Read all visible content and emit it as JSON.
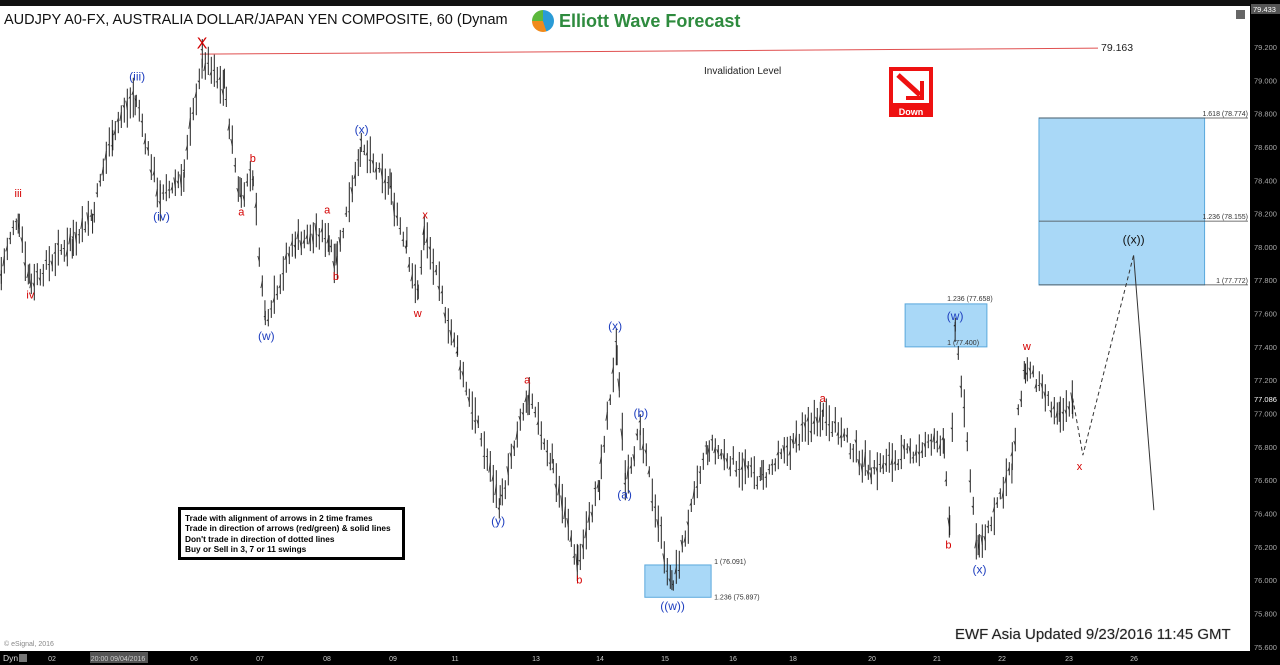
{
  "header": {
    "title": "AUDJPY A0-FX, AUSTRALIA DOLLAR/JAPAN YEN COMPOSITE, 60 (Dynam",
    "logo_text": "Elliott Wave Forecast"
  },
  "notes": [
    "Trade with alignment of arrows in 2 time frames",
    "Trade in direction of arrows (red/green) & solid lines",
    "Don't trade in direction of dotted lines",
    "Buy or Sell in 3, 7 or 11 swings"
  ],
  "footer": {
    "updated": "EWF Asia Updated 9/23/2016 11:45 GMT",
    "copyright": "© eSignal, 2016",
    "dyn_label": "Dyn"
  },
  "signal": {
    "label": "Down",
    "direction": "down",
    "color": "#e11111"
  },
  "invalidation": {
    "label": "Invalidation Level",
    "value_label": "79.163",
    "value": 79.163
  },
  "chart_data": {
    "type": "ohlc-bar",
    "symbol": "AUDJPY",
    "interval": "60",
    "x_ticks": [
      "02",
      "20:00 09/04/2016",
      "06",
      "07",
      "08",
      "09",
      "11",
      "13",
      "14",
      "15",
      "16",
      "18",
      "20",
      "21",
      "22",
      "23",
      "26"
    ],
    "y_ticks": [
      "79.200",
      "79.000",
      "78.800",
      "78.600",
      "78.400",
      "78.200",
      "78.000",
      "77.800",
      "77.600",
      "77.400",
      "77.200",
      "77.000",
      "76.800",
      "76.600",
      "76.400",
      "76.200",
      "76.000",
      "75.800",
      "75.600"
    ],
    "ylim": [
      75.6,
      79.433
    ],
    "last_price": "77.086",
    "top_price": "79.433",
    "swing_path": [
      [
        -0.75,
        77.86
      ],
      [
        -0.5,
        78.2
      ],
      [
        -0.33,
        77.78
      ],
      [
        0.3,
        78.05
      ],
      [
        0.6,
        78.2
      ],
      [
        0.9,
        78.7
      ],
      [
        1.23,
        78.91
      ],
      [
        1.6,
        78.28
      ],
      [
        1.95,
        78.45
      ],
      [
        2.22,
        79.13
      ],
      [
        2.55,
        78.95
      ],
      [
        2.78,
        78.3
      ],
      [
        2.97,
        78.46
      ],
      [
        3.15,
        77.56
      ],
      [
        3.6,
        78.05
      ],
      [
        4.1,
        78.07
      ],
      [
        4.2,
        77.9
      ],
      [
        4.56,
        78.6
      ],
      [
        5.0,
        78.35
      ],
      [
        5.25,
        78.0
      ],
      [
        5.41,
        77.68
      ],
      [
        5.5,
        78.1
      ],
      [
        6.0,
        77.35
      ],
      [
        6.63,
        76.45
      ],
      [
        7.04,
        77.11
      ],
      [
        7.4,
        76.7
      ],
      [
        7.78,
        76.09
      ],
      [
        8.1,
        76.6
      ],
      [
        8.36,
        77.41
      ],
      [
        8.48,
        76.6
      ],
      [
        8.7,
        76.9
      ],
      [
        9.17,
        75.94
      ],
      [
        9.7,
        76.81
      ],
      [
        10.5,
        76.6
      ],
      [
        11.4,
        77.02
      ],
      [
        12.1,
        76.66
      ],
      [
        13.2,
        76.85
      ],
      [
        13.28,
        76.27
      ],
      [
        13.36,
        77.55
      ],
      [
        13.7,
        76.15
      ],
      [
        14.2,
        76.7
      ],
      [
        14.4,
        77.3
      ],
      [
        14.9,
        76.95
      ],
      [
        15.1,
        77.09
      ]
    ],
    "projection": {
      "dashed": [
        [
          15.1,
          77.09
        ],
        [
          15.25,
          76.75
        ],
        [
          16.0,
          77.95
        ]
      ],
      "solid": [
        [
          16.0,
          77.95
        ],
        [
          16.3,
          76.42
        ]
      ]
    },
    "zones": [
      {
        "top": 78.774,
        "bottom": 77.772,
        "mid": 78.155,
        "x0": 14.6,
        "x1": 17.05,
        "labels": [
          "1.618 (78.774)",
          "1.236 (78.155)",
          "1 (77.772)"
        ]
      },
      {
        "top": 77.658,
        "bottom": 77.4,
        "x0": 12.62,
        "x1": 13.83,
        "labels": [
          "1.236 (77.658)",
          "1 (77.400)"
        ]
      },
      {
        "top": 76.091,
        "bottom": 75.897,
        "x0": 8.77,
        "x1": 9.75,
        "labels": [
          "1 (76.091)",
          "1.236 (75.897)"
        ]
      }
    ],
    "wave_labels": [
      {
        "t": "iii",
        "x": -0.5,
        "p": 78.3,
        "c": "red"
      },
      {
        "t": "iv",
        "x": -0.32,
        "p": 77.69,
        "c": "red"
      },
      {
        "t": "(iii)",
        "x": 1.26,
        "p": 79.0,
        "c": "blue"
      },
      {
        "t": "(iv)",
        "x": 1.62,
        "p": 78.16,
        "c": "blue"
      },
      {
        "t": "X",
        "x": 2.22,
        "p": 79.19,
        "c": "redbig"
      },
      {
        "t": "a",
        "x": 2.8,
        "p": 78.19,
        "c": "red"
      },
      {
        "t": "b",
        "x": 2.97,
        "p": 78.51,
        "c": "red"
      },
      {
        "t": "(w)",
        "x": 3.17,
        "p": 77.44,
        "c": "blue"
      },
      {
        "t": "a",
        "x": 4.07,
        "p": 78.2,
        "c": "red"
      },
      {
        "t": "b",
        "x": 4.2,
        "p": 77.8,
        "c": "red"
      },
      {
        "t": "(x)",
        "x": 4.58,
        "p": 78.68,
        "c": "blue"
      },
      {
        "t": "x",
        "x": 5.52,
        "p": 78.17,
        "c": "red"
      },
      {
        "t": "w",
        "x": 5.41,
        "p": 77.58,
        "c": "red"
      },
      {
        "t": "(y)",
        "x": 6.6,
        "p": 76.33,
        "c": "blue"
      },
      {
        "t": "a",
        "x": 7.03,
        "p": 77.18,
        "c": "red"
      },
      {
        "t": "b",
        "x": 7.8,
        "p": 75.98,
        "c": "red"
      },
      {
        "t": "(x)",
        "x": 8.33,
        "p": 77.5,
        "c": "blue"
      },
      {
        "t": "(a)",
        "x": 8.47,
        "p": 76.49,
        "c": "blue"
      },
      {
        "t": "(b)",
        "x": 8.71,
        "p": 76.98,
        "c": "blue"
      },
      {
        "t": "((w))",
        "x": 9.18,
        "p": 75.82,
        "c": "blue"
      },
      {
        "t": "a",
        "x": 11.4,
        "p": 77.07,
        "c": "red"
      },
      {
        "t": "b",
        "x": 13.26,
        "p": 76.19,
        "c": "red"
      },
      {
        "t": "(w)",
        "x": 13.36,
        "p": 77.56,
        "c": "blue"
      },
      {
        "t": "(x)",
        "x": 13.72,
        "p": 76.04,
        "c": "blue"
      },
      {
        "t": "w",
        "x": 14.42,
        "p": 77.38,
        "c": "red"
      },
      {
        "t": "x",
        "x": 15.2,
        "p": 76.66,
        "c": "red"
      },
      {
        "t": "((x))",
        "x": 16.0,
        "p": 78.02,
        "c": "black"
      }
    ],
    "colors": {
      "red": "#d40000",
      "blue": "#1f3fbf",
      "black": "#111111",
      "zone": "#a9d8f7",
      "zone_edge": "#5aa8dc",
      "invalidation": "#e05050"
    }
  }
}
